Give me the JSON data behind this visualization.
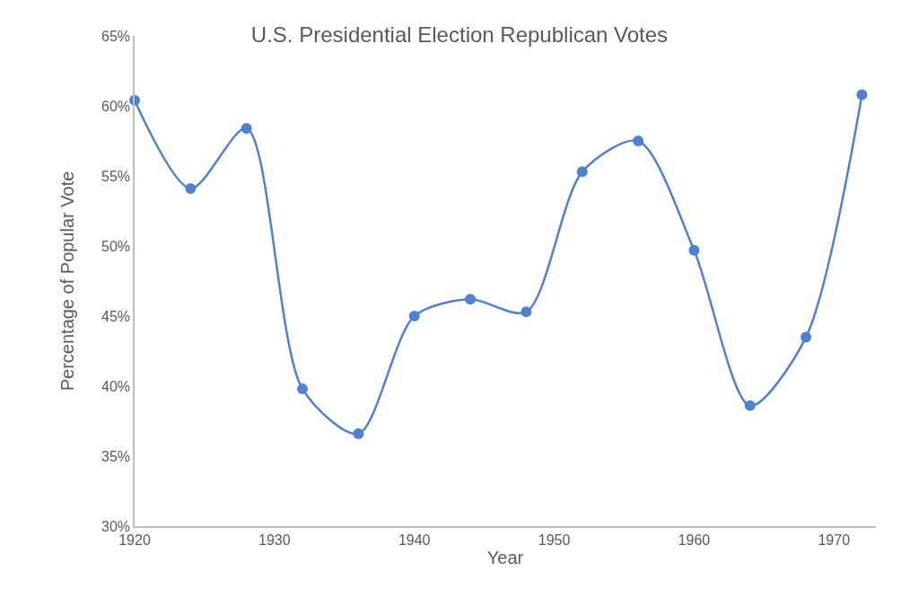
{
  "chart_data": {
    "type": "line",
    "title": "U.S. Presidential Election Republican Votes",
    "xlabel": "Year",
    "ylabel": "Percentage of Popular Vote",
    "x": [
      1920,
      1924,
      1928,
      1932,
      1936,
      1940,
      1944,
      1948,
      1952,
      1956,
      1960,
      1964,
      1968,
      1972
    ],
    "series": [
      {
        "color": "#4f81d0",
        "values": [
          60.4,
          54.1,
          58.4,
          39.8,
          36.6,
          45.0,
          46.2,
          45.3,
          55.3,
          57.5,
          49.7,
          38.6,
          43.5,
          60.8
        ]
      }
    ],
    "xlim": [
      1920,
      1973
    ],
    "xticks": [
      1920,
      1930,
      1940,
      1950,
      1960,
      1970
    ],
    "ylim": [
      30,
      65
    ],
    "yticks": [
      {
        "value": 30,
        "label": "30%"
      },
      {
        "value": 35,
        "label": "35%"
      },
      {
        "value": 40,
        "label": "40%"
      },
      {
        "value": 45,
        "label": "45%"
      },
      {
        "value": 50,
        "label": "50%"
      },
      {
        "value": 55,
        "label": "55%"
      },
      {
        "value": 60,
        "label": "60%"
      },
      {
        "value": 65,
        "label": "65%"
      }
    ],
    "marker": "circle",
    "line_style": "solid"
  }
}
